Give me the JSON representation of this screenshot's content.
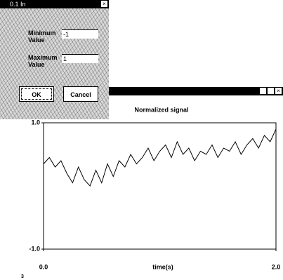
{
  "dialog": {
    "title": "0.1 In",
    "fields": [
      {
        "label": "Minimum Value",
        "value": "-1"
      },
      {
        "label": "Maximum Value",
        "value": "1"
      }
    ],
    "buttons": [
      "OK",
      "Cancel"
    ]
  },
  "chart_data": {
    "type": "line",
    "title": "Normalized signal",
    "x_label": "time(s)",
    "x": [
      0,
      0.05,
      0.1,
      0.15,
      0.2,
      0.25,
      0.3,
      0.35,
      0.4,
      0.45,
      0.5,
      0.55,
      0.6,
      0.65,
      0.7,
      0.75,
      0.8,
      0.85,
      0.9,
      0.95,
      1.0,
      1.05,
      1.1,
      1.15,
      1.2,
      1.25,
      1.3,
      1.35,
      1.4,
      1.45,
      1.5,
      1.55,
      1.6,
      1.65,
      1.7,
      1.75,
      1.8,
      1.85,
      1.9,
      1.95,
      2.0
    ],
    "values": [
      0.35,
      0.45,
      0.3,
      0.4,
      0.2,
      0.05,
      0.3,
      0.1,
      0.0,
      0.25,
      0.05,
      0.35,
      0.15,
      0.4,
      0.3,
      0.5,
      0.35,
      0.45,
      0.6,
      0.4,
      0.55,
      0.65,
      0.45,
      0.7,
      0.5,
      0.6,
      0.4,
      0.55,
      0.5,
      0.65,
      0.45,
      0.6,
      0.55,
      0.7,
      0.5,
      0.65,
      0.75,
      0.6,
      0.8,
      0.7,
      0.9
    ],
    "color": "#000000",
    "xlim": [
      0,
      2
    ],
    "xticks": [
      {
        "value": 0,
        "label": "0.0"
      },
      {
        "value": 2,
        "label": "2.0"
      }
    ],
    "ylim": [
      -1,
      1
    ],
    "yticks": [
      {
        "value": -1,
        "label": "-1.0"
      },
      {
        "value": 1,
        "label": "1.0"
      }
    ]
  },
  "corner_mark": "3"
}
